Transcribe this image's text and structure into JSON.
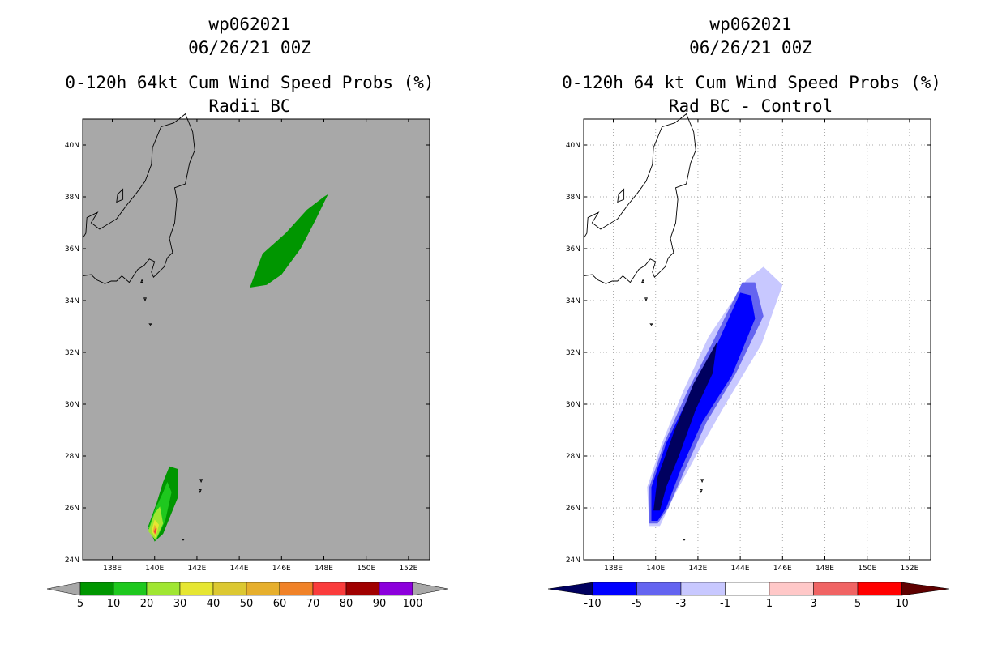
{
  "left": {
    "storm_id": "wp062021",
    "datetime": "06/26/21 00Z",
    "title": "0-120h 64kt Cum Wind Speed Probs (%)",
    "subtitle": "Radii BC",
    "background_color": "#a8a8a8"
  },
  "right": {
    "storm_id": "wp062021",
    "datetime": "06/26/21 00Z",
    "title": "0-120h 64 kt Cum Wind Speed Probs (%)",
    "subtitle": "Rad BC - Control",
    "background_color": "#ffffff"
  },
  "chart_data": [
    {
      "type": "heatmap",
      "title": "0-120h 64kt Cum Wind Speed Probs (%)",
      "subtitle": "Radii BC",
      "x_ticks": [
        "138E",
        "140E",
        "142E",
        "144E",
        "146E",
        "148E",
        "150E",
        "152E"
      ],
      "x_tick_values": [
        138,
        140,
        142,
        144,
        146,
        148,
        150,
        152
      ],
      "y_ticks": [
        "24N",
        "26N",
        "28N",
        "30N",
        "32N",
        "34N",
        "36N",
        "38N",
        "40N"
      ],
      "y_tick_values": [
        24,
        26,
        28,
        30,
        32,
        34,
        36,
        38,
        40
      ],
      "xlim": [
        136.6,
        153.0
      ],
      "ylim": [
        24,
        41
      ],
      "grid": false,
      "colorbar": {
        "labels": [
          "5",
          "10",
          "20",
          "30",
          "40",
          "50",
          "60",
          "70",
          "80",
          "90",
          "100"
        ],
        "colors": [
          "#009600",
          "#1ec81e",
          "#a0e632",
          "#e6e632",
          "#dcc832",
          "#e6af2d",
          "#f08228",
          "#fa3c3c",
          "#a00000",
          "#8c00dc"
        ]
      },
      "regions": [
        {
          "name": "northern swath",
          "level": "5-10",
          "color": "#009600",
          "lonlat": [
            [
              144.5,
              34.5
            ],
            [
              145.1,
              35.8
            ],
            [
              146.2,
              36.6
            ],
            [
              147.2,
              37.5
            ],
            [
              148.0,
              38.0
            ],
            [
              148.2,
              38.1
            ],
            [
              147.6,
              37.1
            ],
            [
              146.9,
              36.0
            ],
            [
              146.0,
              35.0
            ],
            [
              145.3,
              34.6
            ]
          ]
        },
        {
          "name": "southern core 5",
          "level": "5-10",
          "color": "#009600",
          "lonlat": [
            [
              139.7,
              25.3
            ],
            [
              140.1,
              26.2
            ],
            [
              140.4,
              27.0
            ],
            [
              140.7,
              27.6
            ],
            [
              141.1,
              27.5
            ],
            [
              141.1,
              26.4
            ],
            [
              140.4,
              25.0
            ],
            [
              140.0,
              24.7
            ]
          ]
        },
        {
          "name": "southern core 10",
          "level": "10-20",
          "color": "#1ec81e",
          "lonlat": [
            [
              139.7,
              25.2
            ],
            [
              140.0,
              25.9
            ],
            [
              140.4,
              26.6
            ],
            [
              140.6,
              27.0
            ],
            [
              140.8,
              26.6
            ],
            [
              140.5,
              25.5
            ],
            [
              140.1,
              24.8
            ]
          ]
        },
        {
          "name": "southern core 20",
          "level": "20-30",
          "color": "#a0e632",
          "lonlat": [
            [
              139.7,
              25.1
            ],
            [
              140.0,
              25.8
            ],
            [
              140.25,
              26.05
            ],
            [
              140.4,
              25.4
            ],
            [
              140.05,
              24.75
            ]
          ]
        },
        {
          "name": "southern core 30",
          "level": "30-40",
          "color": "#e6e632",
          "lonlat": [
            [
              139.85,
              25.1
            ],
            [
              140.0,
              25.55
            ],
            [
              140.2,
              25.35
            ],
            [
              140.05,
              24.85
            ]
          ]
        },
        {
          "name": "southern core 50",
          "level": "50-60",
          "color": "#e6af2d",
          "lonlat": [
            [
              139.92,
              25.1
            ],
            [
              140.0,
              25.35
            ],
            [
              140.12,
              25.2
            ],
            [
              140.02,
              24.95
            ]
          ]
        },
        {
          "name": "southern core 70",
          "level": "70-80",
          "color": "#fa3c3c",
          "lonlat": [
            [
              139.97,
              25.08
            ],
            [
              140.03,
              25.22
            ],
            [
              140.08,
              25.1
            ],
            [
              140.02,
              25.0
            ]
          ]
        }
      ]
    },
    {
      "type": "heatmap",
      "title": "0-120h 64 kt Cum Wind Speed Probs (%)",
      "subtitle": "Rad BC - Control",
      "x_ticks": [
        "138E",
        "140E",
        "142E",
        "144E",
        "146E",
        "148E",
        "150E",
        "152E"
      ],
      "x_tick_values": [
        138,
        140,
        142,
        144,
        146,
        148,
        150,
        152
      ],
      "y_ticks": [
        "24N",
        "26N",
        "28N",
        "30N",
        "32N",
        "34N",
        "36N",
        "38N",
        "40N"
      ],
      "y_tick_values": [
        24,
        26,
        28,
        30,
        32,
        34,
        36,
        38,
        40
      ],
      "xlim": [
        136.6,
        153.0
      ],
      "ylim": [
        24,
        41
      ],
      "grid": true,
      "colorbar": {
        "labels": [
          "-10",
          "-5",
          "-3",
          "-1",
          "1",
          "3",
          "5",
          "10"
        ],
        "colors": [
          "#00005f",
          "#0000ff",
          "#6464f0",
          "#c8c8ff",
          "#ffffff",
          "#ffc8c8",
          "#f06464",
          "#ff0000",
          "#5f0000"
        ]
      },
      "regions": [
        {
          "name": "diff -1",
          "level": "-3 to -1",
          "color": "#c8c8ff",
          "lonlat": [
            [
              139.7,
              25.3
            ],
            [
              139.6,
              26.8
            ],
            [
              140.3,
              28.5
            ],
            [
              141.3,
              30.5
            ],
            [
              142.5,
              32.6
            ],
            [
              144.3,
              34.8
            ],
            [
              145.1,
              35.3
            ],
            [
              146.0,
              34.6
            ],
            [
              145.0,
              32.3
            ],
            [
              143.3,
              30.0
            ],
            [
              141.9,
              28.0
            ],
            [
              140.9,
              26.5
            ],
            [
              140.2,
              25.3
            ]
          ]
        },
        {
          "name": "diff -3",
          "level": "-5 to -3",
          "color": "#6464f0",
          "lonlat": [
            [
              139.7,
              25.4
            ],
            [
              139.7,
              26.8
            ],
            [
              140.4,
              28.5
            ],
            [
              141.5,
              30.5
            ],
            [
              142.7,
              32.4
            ],
            [
              144.1,
              34.7
            ],
            [
              144.7,
              34.7
            ],
            [
              145.1,
              33.4
            ],
            [
              143.8,
              31.2
            ],
            [
              142.4,
              29.3
            ],
            [
              141.4,
              27.5
            ],
            [
              140.6,
              26.0
            ],
            [
              140.1,
              25.4
            ]
          ]
        },
        {
          "name": "diff -5",
          "level": "-10 to -5",
          "color": "#0000ff",
          "lonlat": [
            [
              139.8,
              25.5
            ],
            [
              139.8,
              26.8
            ],
            [
              140.5,
              28.5
            ],
            [
              141.7,
              30.5
            ],
            [
              142.9,
              32.3
            ],
            [
              144.0,
              34.3
            ],
            [
              144.5,
              34.2
            ],
            [
              144.7,
              33.3
            ],
            [
              143.6,
              31.1
            ],
            [
              142.2,
              29.3
            ],
            [
              141.2,
              27.5
            ],
            [
              140.5,
              26.0
            ],
            [
              140.1,
              25.5
            ]
          ]
        },
        {
          "name": "diff -10",
          "level": "< -10",
          "color": "#00005f",
          "lonlat": [
            [
              139.9,
              25.9
            ],
            [
              140.1,
              27.2
            ],
            [
              140.9,
              29.0
            ],
            [
              141.8,
              30.8
            ],
            [
              142.9,
              32.4
            ],
            [
              142.7,
              31.2
            ],
            [
              141.9,
              29.8
            ],
            [
              141.1,
              28.0
            ],
            [
              140.5,
              26.8
            ],
            [
              140.2,
              25.9
            ]
          ]
        }
      ]
    }
  ],
  "colorbar_left": {
    "labels": [
      "5",
      "10",
      "20",
      "30",
      "40",
      "50",
      "60",
      "70",
      "80",
      "90",
      "100"
    ],
    "colors": [
      "#009600",
      "#1ec81e",
      "#a0e632",
      "#e6e632",
      "#dcc832",
      "#e6af2d",
      "#f08228",
      "#fa3c3c",
      "#a00000",
      "#8c00dc"
    ],
    "under_color": "#a8a8a8",
    "over_color": "#a8a8a8"
  },
  "colorbar_right": {
    "labels": [
      "-10",
      "-5",
      "-3",
      "-1",
      "1",
      "3",
      "5",
      "10"
    ],
    "colors": [
      "#00005f",
      "#0000ff",
      "#6464f0",
      "#c8c8ff",
      "#ffffff",
      "#ffc8c8",
      "#f06464",
      "#ff0000",
      "#5f0000"
    ]
  },
  "coastline": {
    "mainland": [
      [
        136.6,
        34.95
      ],
      [
        137.0,
        35.0
      ],
      [
        137.25,
        34.8
      ],
      [
        137.65,
        34.65
      ],
      [
        137.95,
        34.75
      ],
      [
        138.2,
        34.75
      ],
      [
        138.45,
        34.95
      ],
      [
        138.8,
        34.7
      ],
      [
        139.2,
        35.2
      ],
      [
        139.5,
        35.35
      ],
      [
        139.75,
        35.6
      ],
      [
        140.0,
        35.5
      ],
      [
        139.85,
        35.1
      ],
      [
        139.95,
        34.9
      ],
      [
        140.45,
        35.3
      ],
      [
        140.6,
        35.65
      ],
      [
        140.85,
        35.85
      ],
      [
        140.7,
        36.4
      ],
      [
        140.95,
        37.0
      ],
      [
        141.05,
        37.9
      ],
      [
        140.95,
        38.35
      ],
      [
        141.45,
        38.5
      ],
      [
        141.65,
        39.3
      ],
      [
        141.9,
        39.8
      ],
      [
        141.8,
        40.5
      ],
      [
        141.45,
        41.2
      ],
      [
        141.15,
        41.0
      ],
      [
        140.9,
        40.85
      ],
      [
        140.3,
        40.7
      ],
      [
        139.9,
        39.9
      ],
      [
        139.85,
        39.25
      ],
      [
        139.55,
        38.6
      ],
      [
        139.15,
        38.15
      ],
      [
        138.7,
        37.7
      ],
      [
        138.2,
        37.15
      ],
      [
        137.4,
        36.75
      ],
      [
        137.0,
        37.0
      ],
      [
        137.3,
        37.4
      ],
      [
        136.8,
        37.2
      ],
      [
        136.75,
        36.6
      ],
      [
        136.6,
        36.4
      ]
    ],
    "sado": [
      [
        138.2,
        37.8
      ],
      [
        138.5,
        37.9
      ],
      [
        138.5,
        38.3
      ],
      [
        138.25,
        38.1
      ],
      [
        138.2,
        37.8
      ]
    ],
    "oshima": [
      [
        139.35,
        34.7
      ],
      [
        139.45,
        34.7
      ],
      [
        139.4,
        34.8
      ],
      [
        139.35,
        34.7
      ]
    ],
    "miyake": [
      [
        139.5,
        34.1
      ],
      [
        139.6,
        34.1
      ],
      [
        139.55,
        34.0
      ],
      [
        139.5,
        34.1
      ]
    ],
    "hachijo": [
      [
        139.75,
        33.1
      ],
      [
        139.85,
        33.1
      ],
      [
        139.8,
        33.05
      ],
      [
        139.75,
        33.1
      ]
    ],
    "bonin1": [
      [
        142.15,
        27.1
      ],
      [
        142.25,
        27.1
      ],
      [
        142.2,
        27.0
      ],
      [
        142.15,
        27.1
      ]
    ],
    "bonin2": [
      [
        142.1,
        26.7
      ],
      [
        142.2,
        26.7
      ],
      [
        142.15,
        26.6
      ],
      [
        142.1,
        26.7
      ]
    ],
    "iwo": [
      [
        141.3,
        24.8
      ],
      [
        141.4,
        24.8
      ],
      [
        141.35,
        24.75
      ],
      [
        141.3,
        24.8
      ]
    ]
  }
}
